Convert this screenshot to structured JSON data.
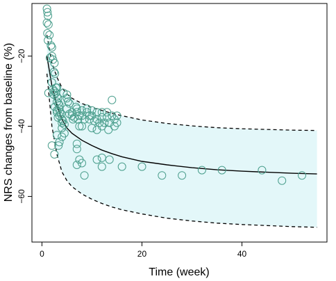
{
  "chart_data": {
    "type": "scatter",
    "xlabel": "Time (week)",
    "ylabel": "NRS changes from baseline (%)",
    "xlim": [
      -2,
      57
    ],
    "ylim": [
      -73,
      -5
    ],
    "x_ticks": [
      0,
      20,
      40
    ],
    "y_ticks": [
      -20,
      -40,
      -60
    ],
    "grid": false,
    "colors": {
      "points": "#4a9e8c",
      "band_fill": "#e3f7f9",
      "median_line": "#000000",
      "interval_lines": "#000000"
    },
    "observed": {
      "x": [
        1.0,
        1.1,
        1.2,
        1.0,
        1.3,
        1.1,
        1.5,
        1.2,
        1.8,
        2.0,
        2.0,
        1.6,
        2.2,
        2.5,
        2.4,
        2.6,
        2.0,
        2.8,
        3.0,
        2.2,
        2.5,
        2.8,
        2.4,
        3.0,
        3.2,
        3.0,
        3.3,
        3.5,
        2.6,
        3.4,
        3.0,
        3.0,
        3.6,
        3.8,
        3.5,
        3.2,
        4.0,
        4.2,
        4.0,
        4.5,
        4.0,
        4.5,
        4.3,
        5.0,
        5.0,
        5.2,
        5.5,
        5.0,
        5.5,
        6.0,
        6.0,
        6.5,
        6.2,
        6.8,
        7.0,
        7.0,
        7.5,
        7.2,
        7.5,
        8.0,
        8.0,
        8.5,
        8.0,
        9.0,
        9.0,
        9.5,
        9.5,
        10.0,
        10.0,
        10.5,
        10.0,
        11.0,
        11.0,
        11.5,
        11.0,
        12.0,
        12.0,
        12.5,
        12.0,
        13.0,
        13.0,
        13.5,
        13.3,
        14.0,
        14.0,
        14.5,
        14.5,
        15.0,
        15.0,
        7.0,
        7.0,
        7.5,
        7.0,
        8.0,
        8.5,
        11.0,
        12.0,
        12.0,
        13.5,
        4.0,
        3.0,
        3.5,
        2.0,
        2.5,
        3.3,
        1.3,
        16.0,
        20.0,
        24.0,
        28.0,
        32.0,
        36.0,
        44.0,
        48.0,
        52.0
      ],
      "y": [
        -6.5,
        -7.5,
        -8.5,
        -10.5,
        -11,
        -13.5,
        -14,
        -15.5,
        -17,
        -17.5,
        -20,
        -20.5,
        -21,
        -22,
        -24.5,
        -25,
        -27.5,
        -29,
        -29,
        -29.5,
        -30,
        -30.5,
        -31,
        -31.5,
        -32,
        -33,
        -33.5,
        -34,
        -34.5,
        -35,
        -35.5,
        -36,
        -36,
        -36.5,
        -37,
        -37.5,
        -38,
        -38.5,
        -39,
        -39.5,
        -40.5,
        -42,
        -30.5,
        -31,
        -32,
        -33,
        -33.5,
        -35,
        -36.5,
        -36,
        -37,
        -37.5,
        -38,
        -34.5,
        -35,
        -36,
        -37,
        -38,
        -40,
        -35.5,
        -37,
        -38,
        -40,
        -35,
        -36,
        -37,
        -38,
        -35.5,
        -37,
        -38.5,
        -40.5,
        -36,
        -38,
        -39,
        -41,
        -36,
        -37.5,
        -39,
        -40,
        -36,
        -37.5,
        -39,
        -41,
        -32.5,
        -37,
        -38,
        -40,
        -37,
        -39,
        -45,
        -46.5,
        -49.5,
        -51,
        -50.5,
        -54,
        -49.5,
        -51.5,
        -49,
        -49.5,
        -43,
        -42.5,
        -44.5,
        -45.5,
        -48,
        -45.5,
        -30.5,
        -51.5,
        -51.5,
        -54,
        -54,
        -52.5,
        -52.5,
        -52.5,
        -55.5,
        -54
      ]
    },
    "median_prediction": {
      "x": [
        1,
        2,
        3,
        4,
        5,
        6,
        8,
        10,
        12,
        14,
        16,
        20,
        25,
        30,
        35,
        40,
        45,
        50,
        55
      ],
      "y": [
        -20,
        -28.5,
        -34,
        -38,
        -40.5,
        -42,
        -44,
        -45.5,
        -46.8,
        -47.8,
        -48.7,
        -50,
        -51,
        -51.8,
        -52.4,
        -52.8,
        -53.1,
        -53.4,
        -53.6
      ]
    },
    "upper_interval": {
      "x": [
        1,
        2,
        3,
        4,
        5,
        6,
        8,
        10,
        12,
        14,
        16,
        20,
        25,
        30,
        35,
        40,
        45,
        50,
        55
      ],
      "y": [
        -14,
        -22,
        -26,
        -29,
        -30.8,
        -32,
        -33.5,
        -34.6,
        -35.5,
        -36.3,
        -37,
        -38.2,
        -39.2,
        -39.9,
        -40.4,
        -40.7,
        -40.9,
        -41.1,
        -41.2
      ]
    },
    "lower_interval": {
      "x": [
        1,
        2,
        3,
        4,
        5,
        6,
        8,
        10,
        12,
        14,
        16,
        20,
        25,
        30,
        35,
        40,
        45,
        50,
        55
      ],
      "y": [
        -25,
        -40,
        -48,
        -53,
        -55.5,
        -57.2,
        -59.3,
        -60.8,
        -62,
        -63,
        -63.8,
        -65,
        -66.2,
        -67,
        -67.6,
        -68,
        -68.3,
        -68.6,
        -68.8
      ]
    }
  }
}
